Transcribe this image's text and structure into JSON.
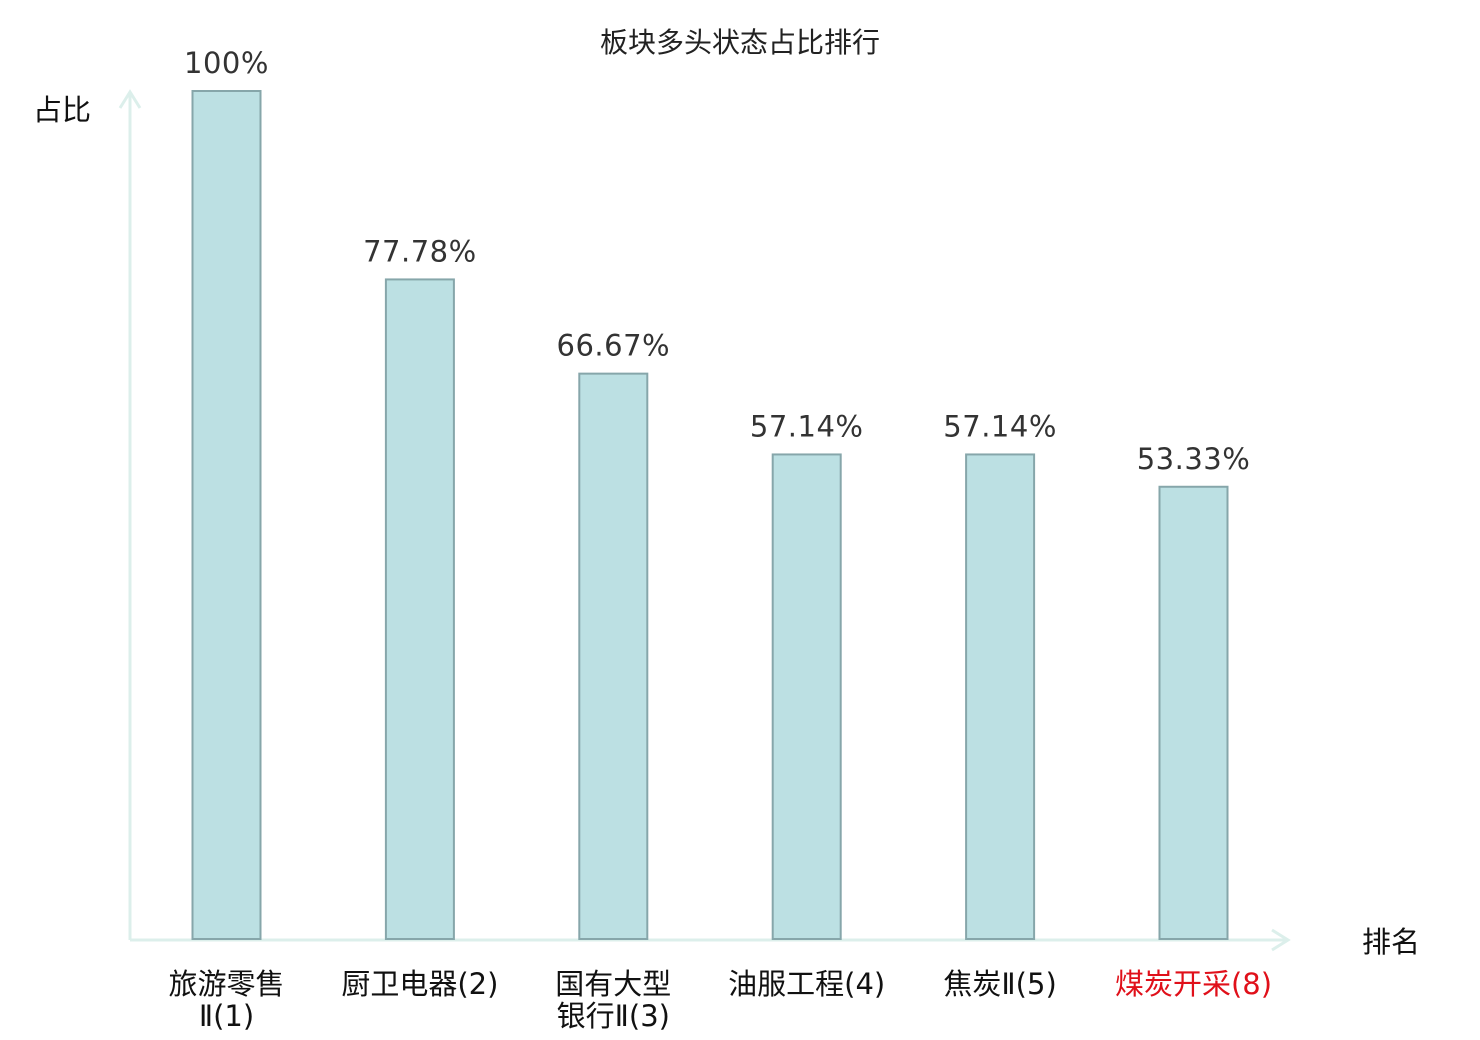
{
  "chart_data": {
    "type": "bar",
    "title": "板块多头状态占比排行",
    "xlabel": "排名",
    "ylabel": "占比",
    "ylim": [
      0,
      100
    ],
    "grid": false,
    "categories": [
      [
        "旅游零售",
        "Ⅱ(1)"
      ],
      [
        "厨卫电器(2)"
      ],
      [
        "国有大型",
        "银行Ⅱ(3)"
      ],
      [
        "油服工程(4)"
      ],
      [
        "焦炭Ⅱ(5)"
      ],
      [
        "煤炭开采(8)"
      ]
    ],
    "values": [
      100,
      77.78,
      66.67,
      57.14,
      57.14,
      53.33
    ],
    "value_labels": [
      "100%",
      "77.78%",
      "66.67%",
      "57.14%",
      "57.14%",
      "53.33%"
    ],
    "highlight_index": 5
  },
  "colors": {
    "bar_fill": "#bce0e3",
    "bar_stroke": "#86a6aa",
    "axis": "#dcefeb",
    "text": "#111111",
    "value_text": "#333333",
    "highlight": "#e0101a"
  }
}
